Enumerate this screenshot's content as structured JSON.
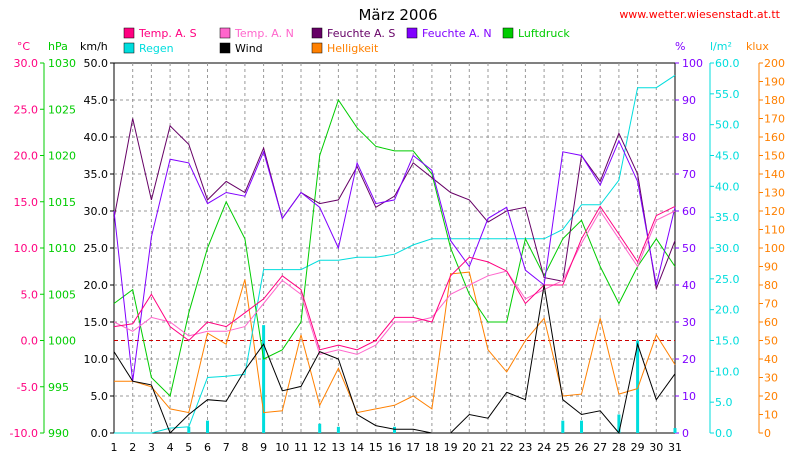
{
  "chart_data": {
    "type": "line",
    "title": "März 2006",
    "source_text": "www.wetter.wiesenstadt.at.tt",
    "x": [
      1,
      2,
      3,
      4,
      5,
      6,
      7,
      8,
      9,
      10,
      11,
      12,
      13,
      14,
      15,
      16,
      17,
      18,
      19,
      20,
      21,
      22,
      23,
      24,
      25,
      26,
      27,
      28,
      29,
      30,
      31
    ],
    "x_tick_labels": [
      "1",
      "2",
      "3",
      "4",
      "5",
      "6",
      "7",
      "8",
      "9",
      "10",
      "11",
      "12",
      "13",
      "14",
      "15",
      "16",
      "17",
      "18",
      "19",
      "20",
      "21",
      "22",
      "23",
      "24",
      "25",
      "26",
      "27",
      "28",
      "29",
      "30",
      "31"
    ],
    "grid": true,
    "legend_placement": "top",
    "axes": [
      {
        "id": "temp",
        "unit": "°C",
        "color": "#ff0080",
        "side": "left",
        "ylim": [
          -10,
          30
        ],
        "ticks": [
          -10,
          -5,
          0,
          5,
          10,
          15,
          20,
          25,
          30
        ],
        "tick_labels": [
          "-10.0",
          "-5.0",
          "0.0",
          "5.0",
          "10.0",
          "15.0",
          "20.0",
          "25.0",
          "30.0"
        ]
      },
      {
        "id": "press",
        "unit": "hPa",
        "color": "#00cc00",
        "side": "left",
        "ylim": [
          990,
          1030
        ],
        "ticks": [
          990,
          995,
          1000,
          1005,
          1010,
          1015,
          1020,
          1025,
          1030
        ],
        "tick_labels": [
          "990",
          "995",
          "1000",
          "1005",
          "1010",
          "1015",
          "1020",
          "1025",
          "1030"
        ]
      },
      {
        "id": "wind",
        "unit": "km/h",
        "color": "#000000",
        "side": "left",
        "ylim": [
          0,
          50
        ],
        "ticks": [
          0,
          5,
          10,
          15,
          20,
          25,
          30,
          35,
          40,
          45,
          50
        ],
        "tick_labels": [
          "0.0",
          "5.0",
          "10.0",
          "15.0",
          "20.0",
          "25.0",
          "30.0",
          "35.0",
          "40.0",
          "45.0",
          "50.0"
        ]
      },
      {
        "id": "hum",
        "unit": "%",
        "color": "#8000ff",
        "side": "right",
        "ylim": [
          0,
          100
        ],
        "ticks": [
          0,
          10,
          20,
          30,
          40,
          50,
          60,
          70,
          80,
          90,
          100
        ],
        "tick_labels": [
          "0",
          "10",
          "20",
          "30",
          "40",
          "50",
          "60",
          "70",
          "80",
          "90",
          "100"
        ]
      },
      {
        "id": "rain",
        "unit": "l/m²",
        "color": "#00dddd",
        "side": "right",
        "ylim": [
          0,
          60
        ],
        "ticks": [
          0,
          5,
          10,
          15,
          20,
          25,
          30,
          35,
          40,
          45,
          50,
          55,
          60
        ],
        "tick_labels": [
          "0.0",
          "5.0",
          "10.0",
          "15.0",
          "20.0",
          "25.0",
          "30.0",
          "35.0",
          "40.0",
          "45.0",
          "50.0",
          "55.0",
          "60.0"
        ]
      },
      {
        "id": "lux",
        "unit": "klux",
        "color": "#ff8000",
        "side": "right",
        "ylim": [
          0,
          200
        ],
        "ticks": [
          0,
          10,
          20,
          30,
          40,
          50,
          60,
          70,
          80,
          90,
          100,
          110,
          120,
          130,
          140,
          150,
          160,
          170,
          180,
          190,
          200
        ],
        "tick_labels": [
          "0",
          "10",
          "20",
          "30",
          "40",
          "50",
          "60",
          "70",
          "80",
          "90",
          "100",
          "110",
          "120",
          "130",
          "140",
          "150",
          "160",
          "170",
          "180",
          "190",
          "200"
        ]
      }
    ],
    "series": [
      {
        "name": "Temp. A. S",
        "axis": "temp",
        "color": "#ff0080",
        "values": [
          1.5,
          1.8,
          5.0,
          1.5,
          0.0,
          2.0,
          1.5,
          3.0,
          4.5,
          7.0,
          5.5,
          -1.0,
          -0.5,
          -1.0,
          0.0,
          2.5,
          2.5,
          2.0,
          7.0,
          9.0,
          8.5,
          7.5,
          4.0,
          6.0,
          6.0,
          11.0,
          14.5,
          11.5,
          8.5,
          13.5,
          14.5
        ]
      },
      {
        "name": "Temp. A. N",
        "axis": "temp",
        "color": "#ff66cc",
        "values": [
          2.0,
          1.0,
          2.5,
          2.0,
          0.5,
          1.0,
          1.0,
          1.5,
          4.0,
          6.5,
          5.0,
          -1.5,
          -1.0,
          -1.5,
          -0.5,
          2.0,
          2.0,
          2.5,
          5.0,
          6.0,
          7.0,
          7.5,
          4.5,
          5.5,
          6.5,
          10.5,
          14.0,
          11.0,
          8.0,
          13.0,
          14.0
        ]
      },
      {
        "name": "Feuchte A. S",
        "axis": "hum",
        "color": "#660066",
        "values": [
          58,
          85,
          63,
          83,
          78,
          63,
          68,
          65,
          77,
          58,
          65,
          62,
          63,
          72,
          61,
          64,
          73,
          69,
          65,
          63,
          57,
          60,
          61,
          42,
          41,
          75,
          68,
          81,
          70,
          39,
          52
        ]
      },
      {
        "name": "Feuchte A. N",
        "axis": "hum",
        "color": "#8000ff",
        "values": [
          60,
          14,
          53,
          74,
          73,
          62,
          65,
          64,
          76,
          58,
          65,
          61,
          50,
          73,
          62,
          63,
          75,
          71,
          52,
          45,
          58,
          61,
          44,
          40,
          76,
          75,
          67,
          79,
          68,
          40,
          61
        ]
      },
      {
        "name": "Luftdruck",
        "axis": "press",
        "color": "#00cc00",
        "values": [
          1004,
          1005.5,
          996,
          994,
          1003,
          1010,
          1015,
          1011,
          998,
          999,
          1002,
          1020,
          1026,
          1023,
          1021,
          1020.5,
          1020.5,
          1018,
          1010,
          1005,
          1002,
          1002,
          1011,
          1007,
          1011,
          1013,
          1008,
          1004,
          1008,
          1011,
          1008
        ]
      },
      {
        "name": "Regen",
        "axis": "rain",
        "color": "#00dddd",
        "values": [
          0.0,
          0.0,
          0.0,
          0.8,
          1.0,
          9.0,
          9.2,
          9.5,
          26.5,
          26.5,
          26.5,
          28.0,
          28.0,
          28.5,
          28.5,
          29.0,
          30.5,
          31.5,
          31.5,
          31.5,
          31.5,
          31.5,
          31.5,
          31.5,
          33.0,
          37.0,
          37.0,
          41.0,
          56.0,
          56.0,
          58.0
        ]
      },
      {
        "name": "Wind",
        "axis": "wind",
        "color": "#000000",
        "values": [
          11.0,
          7.0,
          6.5,
          0.0,
          2.5,
          4.5,
          4.3,
          8.5,
          12.0,
          5.7,
          6.3,
          11.0,
          10.0,
          2.5,
          1.0,
          0.5,
          0.5,
          0.0,
          0.0,
          2.5,
          2.0,
          5.5,
          4.5,
          20.0,
          4.5,
          2.5,
          3.0,
          0.0,
          12.0,
          4.5,
          8.0
        ]
      },
      {
        "name": "Helligkeit",
        "axis": "lux",
        "color": "#ff8000",
        "values": [
          28,
          28,
          25,
          13,
          11,
          54,
          48,
          83,
          11,
          12,
          53,
          15,
          35,
          11,
          13,
          15,
          20,
          13,
          86,
          87,
          45,
          33,
          50,
          62,
          20,
          21,
          62,
          21,
          24,
          53,
          37
        ]
      }
    ],
    "rain_bars": {
      "axis": "rain",
      "days": [
        5,
        6,
        9,
        12,
        13,
        16,
        25,
        26,
        28,
        29,
        31
      ],
      "values": [
        1.0,
        2.0,
        17.5,
        1.5,
        1.0,
        1.0,
        2.0,
        2.0,
        3.0,
        15.0,
        0.8
      ]
    },
    "reference_line": {
      "axis": "temp",
      "value": 0,
      "color": "#cc0000",
      "style": "dashed"
    }
  }
}
